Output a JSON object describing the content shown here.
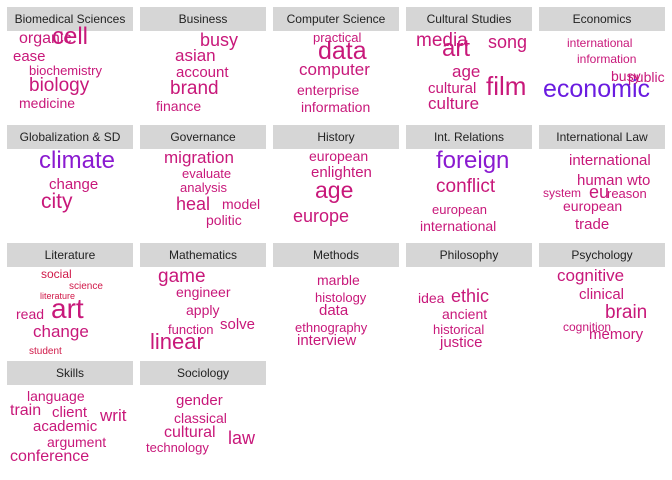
{
  "chart_data": {
    "type": "wordcloud",
    "panels": [
      {
        "title": "Biomedical Sciences",
        "words": [
          {
            "text": "organic",
            "size": 16,
            "color": "#c8187a"
          },
          {
            "text": "cell",
            "size": 24,
            "color": "#c8187a"
          },
          {
            "text": "ease",
            "size": 15,
            "color": "#c8187a"
          },
          {
            "text": "biochemistry",
            "size": 13,
            "color": "#c8187a"
          },
          {
            "text": "biology",
            "size": 19,
            "color": "#c8187a"
          },
          {
            "text": "medicine",
            "size": 14,
            "color": "#c8187a"
          }
        ]
      },
      {
        "title": "Business",
        "words": [
          {
            "text": "busy",
            "size": 18,
            "color": "#c8187a"
          },
          {
            "text": "asian",
            "size": 17,
            "color": "#c8187a"
          },
          {
            "text": "account",
            "size": 15,
            "color": "#c8187a"
          },
          {
            "text": "brand",
            "size": 19,
            "color": "#c8187a"
          },
          {
            "text": "finance",
            "size": 14,
            "color": "#c8187a"
          }
        ]
      },
      {
        "title": "Computer Science",
        "words": [
          {
            "text": "practical",
            "size": 13,
            "color": "#c8187a"
          },
          {
            "text": "data",
            "size": 25,
            "color": "#c8187a"
          },
          {
            "text": "computer",
            "size": 17,
            "color": "#c8187a"
          },
          {
            "text": "enterprise",
            "size": 14,
            "color": "#c8187a"
          },
          {
            "text": "information",
            "size": 14,
            "color": "#c8187a"
          }
        ]
      },
      {
        "title": "Cultural Studies",
        "words": [
          {
            "text": "media",
            "size": 19,
            "color": "#c8187a"
          },
          {
            "text": "song",
            "size": 18,
            "color": "#c8187a"
          },
          {
            "text": "art",
            "size": 24,
            "color": "#c8187a"
          },
          {
            "text": "age",
            "size": 17,
            "color": "#c8187a"
          },
          {
            "text": "film",
            "size": 26,
            "color": "#c8187a"
          },
          {
            "text": "cultural",
            "size": 15,
            "color": "#c8187a"
          },
          {
            "text": "culture",
            "size": 17,
            "color": "#c8187a"
          }
        ]
      },
      {
        "title": "Economics",
        "words": [
          {
            "text": "international",
            "size": 12,
            "color": "#c8187a"
          },
          {
            "text": "information",
            "size": 12,
            "color": "#c8187a"
          },
          {
            "text": "busy",
            "size": 14,
            "color": "#c8187a"
          },
          {
            "text": "public",
            "size": 14,
            "color": "#c8187a"
          },
          {
            "text": "economic",
            "size": 25,
            "color": "#6a1be0"
          }
        ]
      },
      {
        "title": "Globalization & SD",
        "words": [
          {
            "text": "climate",
            "size": 24,
            "color": "#8a1ad0"
          },
          {
            "text": "change",
            "size": 15,
            "color": "#c8187a"
          },
          {
            "text": "city",
            "size": 21,
            "color": "#c8187a"
          }
        ]
      },
      {
        "title": "Governance",
        "words": [
          {
            "text": "migration",
            "size": 17,
            "color": "#c8187a"
          },
          {
            "text": "evaluate",
            "size": 13,
            "color": "#c8187a"
          },
          {
            "text": "analysis",
            "size": 13,
            "color": "#c8187a"
          },
          {
            "text": "heal",
            "size": 18,
            "color": "#c8187a"
          },
          {
            "text": "model",
            "size": 14,
            "color": "#c8187a"
          },
          {
            "text": "politic",
            "size": 14,
            "color": "#c8187a"
          }
        ]
      },
      {
        "title": "History",
        "words": [
          {
            "text": "european",
            "size": 14,
            "color": "#c8187a"
          },
          {
            "text": "enlighten",
            "size": 15,
            "color": "#c8187a"
          },
          {
            "text": "age",
            "size": 23,
            "color": "#c8187a"
          },
          {
            "text": "europe",
            "size": 18,
            "color": "#c8187a"
          }
        ]
      },
      {
        "title": "Int. Relations",
        "words": [
          {
            "text": "foreign",
            "size": 24,
            "color": "#8a1ad0"
          },
          {
            "text": "conflict",
            "size": 19,
            "color": "#c8187a"
          },
          {
            "text": "european",
            "size": 13,
            "color": "#c8187a"
          },
          {
            "text": "international",
            "size": 14,
            "color": "#c8187a"
          }
        ]
      },
      {
        "title": "International Law",
        "words": [
          {
            "text": "international",
            "size": 15,
            "color": "#c8187a"
          },
          {
            "text": "human",
            "size": 15,
            "color": "#c8187a"
          },
          {
            "text": "wto",
            "size": 15,
            "color": "#c8187a"
          },
          {
            "text": "system",
            "size": 12,
            "color": "#c8187a"
          },
          {
            "text": "eu",
            "size": 18,
            "color": "#c8187a"
          },
          {
            "text": "reason",
            "size": 13,
            "color": "#c8187a"
          },
          {
            "text": "european",
            "size": 14,
            "color": "#c8187a"
          },
          {
            "text": "trade",
            "size": 15,
            "color": "#c8187a"
          }
        ]
      },
      {
        "title": "Literature",
        "words": [
          {
            "text": "social",
            "size": 12,
            "color": "#d01848"
          },
          {
            "text": "science",
            "size": 10,
            "color": "#d01848"
          },
          {
            "text": "literature",
            "size": 9,
            "color": "#d01848"
          },
          {
            "text": "read",
            "size": 14,
            "color": "#c8187a"
          },
          {
            "text": "art",
            "size": 28,
            "color": "#c8187a"
          },
          {
            "text": "change",
            "size": 17,
            "color": "#c8187a"
          },
          {
            "text": "student",
            "size": 10,
            "color": "#d01848"
          }
        ]
      },
      {
        "title": "Mathematics",
        "words": [
          {
            "text": "game",
            "size": 19,
            "color": "#c8187a"
          },
          {
            "text": "engineer",
            "size": 14,
            "color": "#c8187a"
          },
          {
            "text": "apply",
            "size": 14,
            "color": "#c8187a"
          },
          {
            "text": "solve",
            "size": 15,
            "color": "#c8187a"
          },
          {
            "text": "function",
            "size": 13,
            "color": "#c8187a"
          },
          {
            "text": "linear",
            "size": 22,
            "color": "#c8187a"
          }
        ]
      },
      {
        "title": "Methods",
        "words": [
          {
            "text": "marble",
            "size": 14,
            "color": "#c8187a"
          },
          {
            "text": "histology",
            "size": 13,
            "color": "#c8187a"
          },
          {
            "text": "data",
            "size": 15,
            "color": "#c8187a"
          },
          {
            "text": "ethnography",
            "size": 13,
            "color": "#c8187a"
          },
          {
            "text": "interview",
            "size": 15,
            "color": "#c8187a"
          }
        ]
      },
      {
        "title": "Philosophy",
        "words": [
          {
            "text": "idea",
            "size": 14,
            "color": "#c8187a"
          },
          {
            "text": "ethic",
            "size": 18,
            "color": "#c8187a"
          },
          {
            "text": "ancient",
            "size": 14,
            "color": "#c8187a"
          },
          {
            "text": "historical",
            "size": 13,
            "color": "#c8187a"
          },
          {
            "text": "justice",
            "size": 15,
            "color": "#c8187a"
          }
        ]
      },
      {
        "title": "Psychology",
        "words": [
          {
            "text": "cognitive",
            "size": 17,
            "color": "#c8187a"
          },
          {
            "text": "clinical",
            "size": 15,
            "color": "#c8187a"
          },
          {
            "text": "brain",
            "size": 19,
            "color": "#c8187a"
          },
          {
            "text": "cognition",
            "size": 12,
            "color": "#c8187a"
          },
          {
            "text": "memory",
            "size": 15,
            "color": "#c8187a"
          }
        ]
      },
      {
        "title": "Skills",
        "words": [
          {
            "text": "language",
            "size": 14,
            "color": "#c8187a"
          },
          {
            "text": "train",
            "size": 16,
            "color": "#c8187a"
          },
          {
            "text": "client",
            "size": 15,
            "color": "#c8187a"
          },
          {
            "text": "writ",
            "size": 17,
            "color": "#c8187a"
          },
          {
            "text": "academic",
            "size": 15,
            "color": "#c8187a"
          },
          {
            "text": "argument",
            "size": 14,
            "color": "#c8187a"
          },
          {
            "text": "conference",
            "size": 16,
            "color": "#c8187a"
          }
        ]
      },
      {
        "title": "Sociology",
        "words": [
          {
            "text": "gender",
            "size": 15,
            "color": "#c8187a"
          },
          {
            "text": "classical",
            "size": 14,
            "color": "#c8187a"
          },
          {
            "text": "cultural",
            "size": 16,
            "color": "#c8187a"
          },
          {
            "text": "law",
            "size": 18,
            "color": "#c8187a"
          },
          {
            "text": "technology",
            "size": 13,
            "color": "#c8187a"
          }
        ]
      }
    ]
  }
}
